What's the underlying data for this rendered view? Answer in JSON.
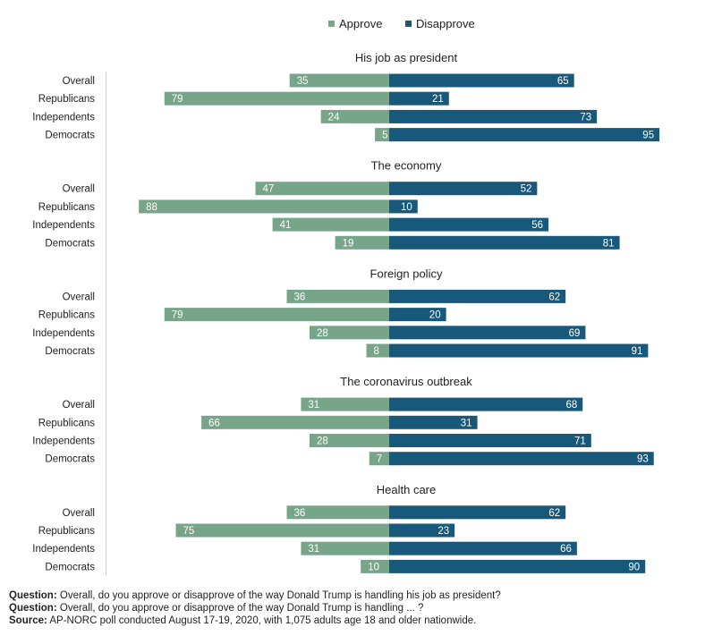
{
  "chart_data": {
    "type": "bar",
    "orientation": "diverging-horizontal",
    "legend": [
      {
        "name": "Approve",
        "color": "#77a58a"
      },
      {
        "name": "Disapprove",
        "color": "#18587a"
      }
    ],
    "categories": [
      "Overall",
      "Republicans",
      "Independents",
      "Democrats"
    ],
    "panels": [
      {
        "title": "His job as president",
        "series": [
          {
            "name": "Approve",
            "values": [
              35,
              79,
              24,
              5
            ]
          },
          {
            "name": "Disapprove",
            "values": [
              65,
              21,
              73,
              95
            ]
          }
        ]
      },
      {
        "title": "The economy",
        "series": [
          {
            "name": "Approve",
            "values": [
              47,
              88,
              41,
              19
            ]
          },
          {
            "name": "Disapprove",
            "values": [
              52,
              10,
              56,
              81
            ]
          }
        ]
      },
      {
        "title": "Foreign policy",
        "series": [
          {
            "name": "Approve",
            "values": [
              36,
              79,
              28,
              8
            ]
          },
          {
            "name": "Disapprove",
            "values": [
              62,
              20,
              69,
              91
            ]
          }
        ]
      },
      {
        "title": "The coronavirus outbreak",
        "series": [
          {
            "name": "Approve",
            "values": [
              31,
              66,
              28,
              7
            ]
          },
          {
            "name": "Disapprove",
            "values": [
              68,
              31,
              71,
              93
            ]
          }
        ]
      },
      {
        "title": "Health care",
        "series": [
          {
            "name": "Approve",
            "values": [
              36,
              75,
              31,
              10
            ]
          },
          {
            "name": "Disapprove",
            "values": [
              62,
              23,
              66,
              90
            ]
          }
        ]
      }
    ]
  },
  "footer": {
    "q1_label": "Question:",
    "q1_text": "Overall, do you approve or disapprove of the way Donald Trump is handling his job as president?",
    "q2_label": "Question:",
    "q2_text": "Overall, do you approve or disapprove of the way Donald Trump is handling ... ?",
    "source_label": "Source:",
    "source_text": "AP-NORC poll conducted August 17-19, 2020, with 1,075 adults age 18 and older nationwide."
  }
}
